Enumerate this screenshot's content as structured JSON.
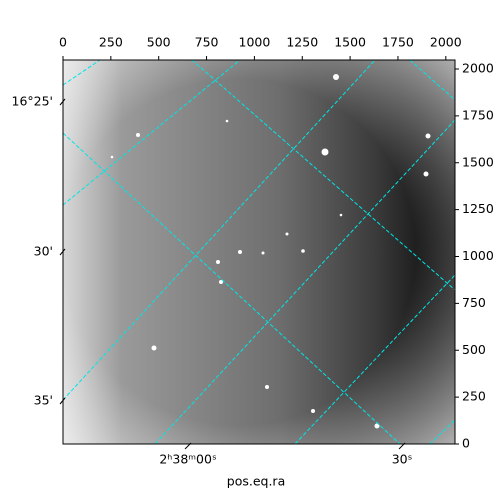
{
  "chart_data": {
    "type": "image",
    "xlim": [
      0,
      2048
    ],
    "xticks": [
      0,
      250,
      500,
      750,
      1000,
      1250,
      1500,
      1750,
      2000
    ],
    "ylim": [
      0,
      2048
    ],
    "yticks": [
      0,
      250,
      500,
      750,
      1000,
      1250,
      1500,
      1750,
      2000
    ],
    "dec_labels": [
      "16°25'",
      "30'",
      "35'"
    ],
    "ra_labels": [
      "2ʰ38ᵐ00ˢ",
      "30ˢ"
    ],
    "xlabel": "pos.eq.ra",
    "grid_color": "#00e5e5"
  }
}
